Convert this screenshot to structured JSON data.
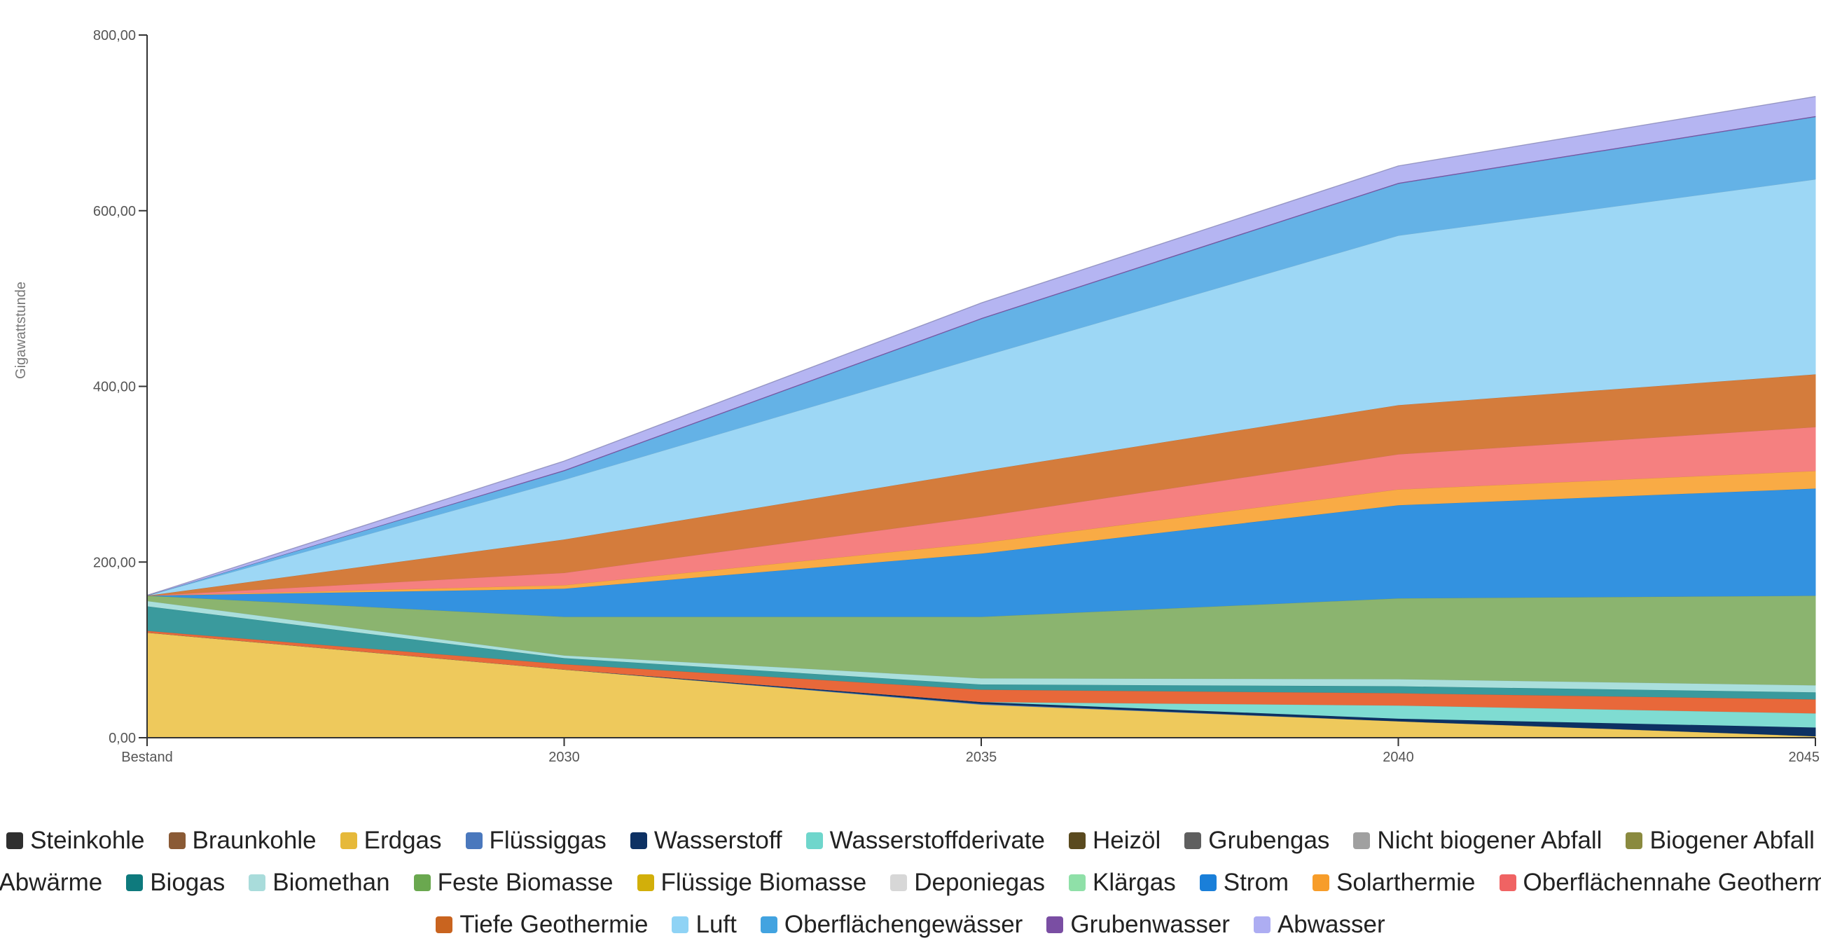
{
  "chart_data": {
    "type": "area",
    "stacked": true,
    "categories": [
      "Bestand",
      "2030",
      "2035",
      "2040",
      "2045"
    ],
    "ylabel": "Gigawattstunde",
    "ylim": [
      0,
      800
    ],
    "yticks": [
      "0,00",
      "200,00",
      "400,00",
      "600,00",
      "800,00"
    ],
    "grid": false,
    "legend_position": "bottom",
    "series": [
      {
        "name": "Steinkohle",
        "color": "#2f2f2f",
        "values": [
          0,
          0,
          0,
          0,
          0
        ]
      },
      {
        "name": "Braunkohle",
        "color": "#8a5a35",
        "values": [
          0,
          0,
          0,
          0,
          0
        ]
      },
      {
        "name": "Erdgas",
        "color": "#eec95c",
        "values": [
          120,
          78,
          38,
          19,
          2
        ]
      },
      {
        "name": "Flüssiggas",
        "color": "#4a78bd",
        "values": [
          0,
          0,
          1,
          0,
          0
        ]
      },
      {
        "name": "Wasserstoff",
        "color": "#0d3163",
        "values": [
          0,
          0,
          2,
          3,
          10
        ]
      },
      {
        "name": "Wasserstoffderivate",
        "color": "#7fdcd2",
        "values": [
          0,
          0,
          0,
          15,
          16
        ]
      },
      {
        "name": "Heizöl",
        "color": "#5a4a1f",
        "values": [
          0,
          0,
          0,
          0,
          0
        ]
      },
      {
        "name": "Grubengas",
        "color": "#5f5f5f",
        "values": [
          0,
          0,
          0,
          0,
          0
        ]
      },
      {
        "name": "Nicht biogener Abfall",
        "color": "#a0a0a0",
        "values": [
          0,
          0,
          0,
          0,
          0
        ]
      },
      {
        "name": "Biogener Abfall",
        "color": "#8a8a3f",
        "values": [
          0,
          0,
          0,
          0,
          0
        ]
      },
      {
        "name": "Abwärme",
        "color": "#e8683a",
        "values": [
          2,
          6,
          14,
          14,
          16
        ]
      },
      {
        "name": "Biogas",
        "color": "#3a9a9d",
        "values": [
          28,
          7,
          6,
          8,
          8
        ]
      },
      {
        "name": "Biomethan",
        "color": "#aadfdc",
        "values": [
          6,
          3,
          7,
          8,
          8
        ]
      },
      {
        "name": "Feste Biomasse",
        "color": "#8bb46f",
        "values": [
          6,
          44,
          70,
          92,
          102
        ]
      },
      {
        "name": "Flüssige Biomasse",
        "color": "#d2af2a",
        "values": [
          0,
          0,
          0,
          0,
          0
        ]
      },
      {
        "name": "Deponiegas",
        "color": "#d7d7d7",
        "values": [
          0,
          0,
          0,
          0,
          0
        ]
      },
      {
        "name": "Klärgas",
        "color": "#8fe0a8",
        "values": [
          0,
          0,
          0,
          0,
          0
        ]
      },
      {
        "name": "Strom",
        "color": "#3392e0",
        "values": [
          0,
          32,
          72,
          106,
          122
        ]
      },
      {
        "name": "Solarthermie",
        "color": "#f9ab45",
        "values": [
          0,
          4,
          12,
          18,
          20
        ]
      },
      {
        "name": "Oberflächennahe Geothermie",
        "color": "#f58080",
        "values": [
          0,
          14,
          30,
          40,
          50
        ]
      },
      {
        "name": "Tiefe Geothermie",
        "color": "#d47c3c",
        "values": [
          0,
          38,
          52,
          56,
          60
        ]
      },
      {
        "name": "Luft",
        "color": "#9dd7f5",
        "values": [
          0,
          68,
          130,
          193,
          222
        ]
      },
      {
        "name": "Oberflächengewässer",
        "color": "#64b2e6",
        "values": [
          0,
          10,
          43,
          59,
          71
        ]
      },
      {
        "name": "Grubenwasser",
        "color": "#7a56a8",
        "values": [
          0,
          1,
          1,
          1,
          1
        ]
      },
      {
        "name": "Abwasser",
        "color": "#b5b5f2",
        "values": [
          0,
          10,
          17,
          19,
          22
        ]
      }
    ]
  },
  "legend": {
    "rows": [
      [
        {
          "label": "Steinkohle",
          "color": "#2f2f2f"
        },
        {
          "label": "Braunkohle",
          "color": "#8a5a35"
        },
        {
          "label": "Erdgas",
          "color": "#e6b93a"
        },
        {
          "label": "Flüssiggas",
          "color": "#4a78bd"
        },
        {
          "label": "Wasserstoff",
          "color": "#0d3163"
        },
        {
          "label": "Wasserstoffderivate",
          "color": "#6fd6cc"
        },
        {
          "label": "Heizöl",
          "color": "#5a4a1f"
        },
        {
          "label": "Grubengas",
          "color": "#5f5f5f"
        },
        {
          "label": "Nicht biogener Abfall",
          "color": "#a0a0a0"
        },
        {
          "label": "Biogener Abfall",
          "color": "#8a8a3f"
        }
      ],
      [
        {
          "label": "Abwärme",
          "color": "#e4581f"
        },
        {
          "label": "Biogas",
          "color": "#0e7a7d"
        },
        {
          "label": "Biomethan",
          "color": "#a9dcdb"
        },
        {
          "label": "Feste Biomasse",
          "color": "#6aa84f"
        },
        {
          "label": "Flüssige Biomasse",
          "color": "#d2af0a"
        },
        {
          "label": "Deponiegas",
          "color": "#d7d7d7"
        },
        {
          "label": "Klärgas",
          "color": "#8fe0a8"
        },
        {
          "label": "Strom",
          "color": "#1a7fd9"
        },
        {
          "label": "Solarthermie",
          "color": "#f79d2a"
        },
        {
          "label": "Oberflächennahe Geothermie",
          "color": "#f06363"
        }
      ],
      [
        {
          "label": "Tiefe Geothermie",
          "color": "#c9641f"
        },
        {
          "label": "Luft",
          "color": "#8fd3f5"
        },
        {
          "label": "Oberflächengewässer",
          "color": "#42a3e0"
        },
        {
          "label": "Grubenwasser",
          "color": "#7a4ea3"
        },
        {
          "label": "Abwasser",
          "color": "#adadf2"
        }
      ]
    ]
  }
}
